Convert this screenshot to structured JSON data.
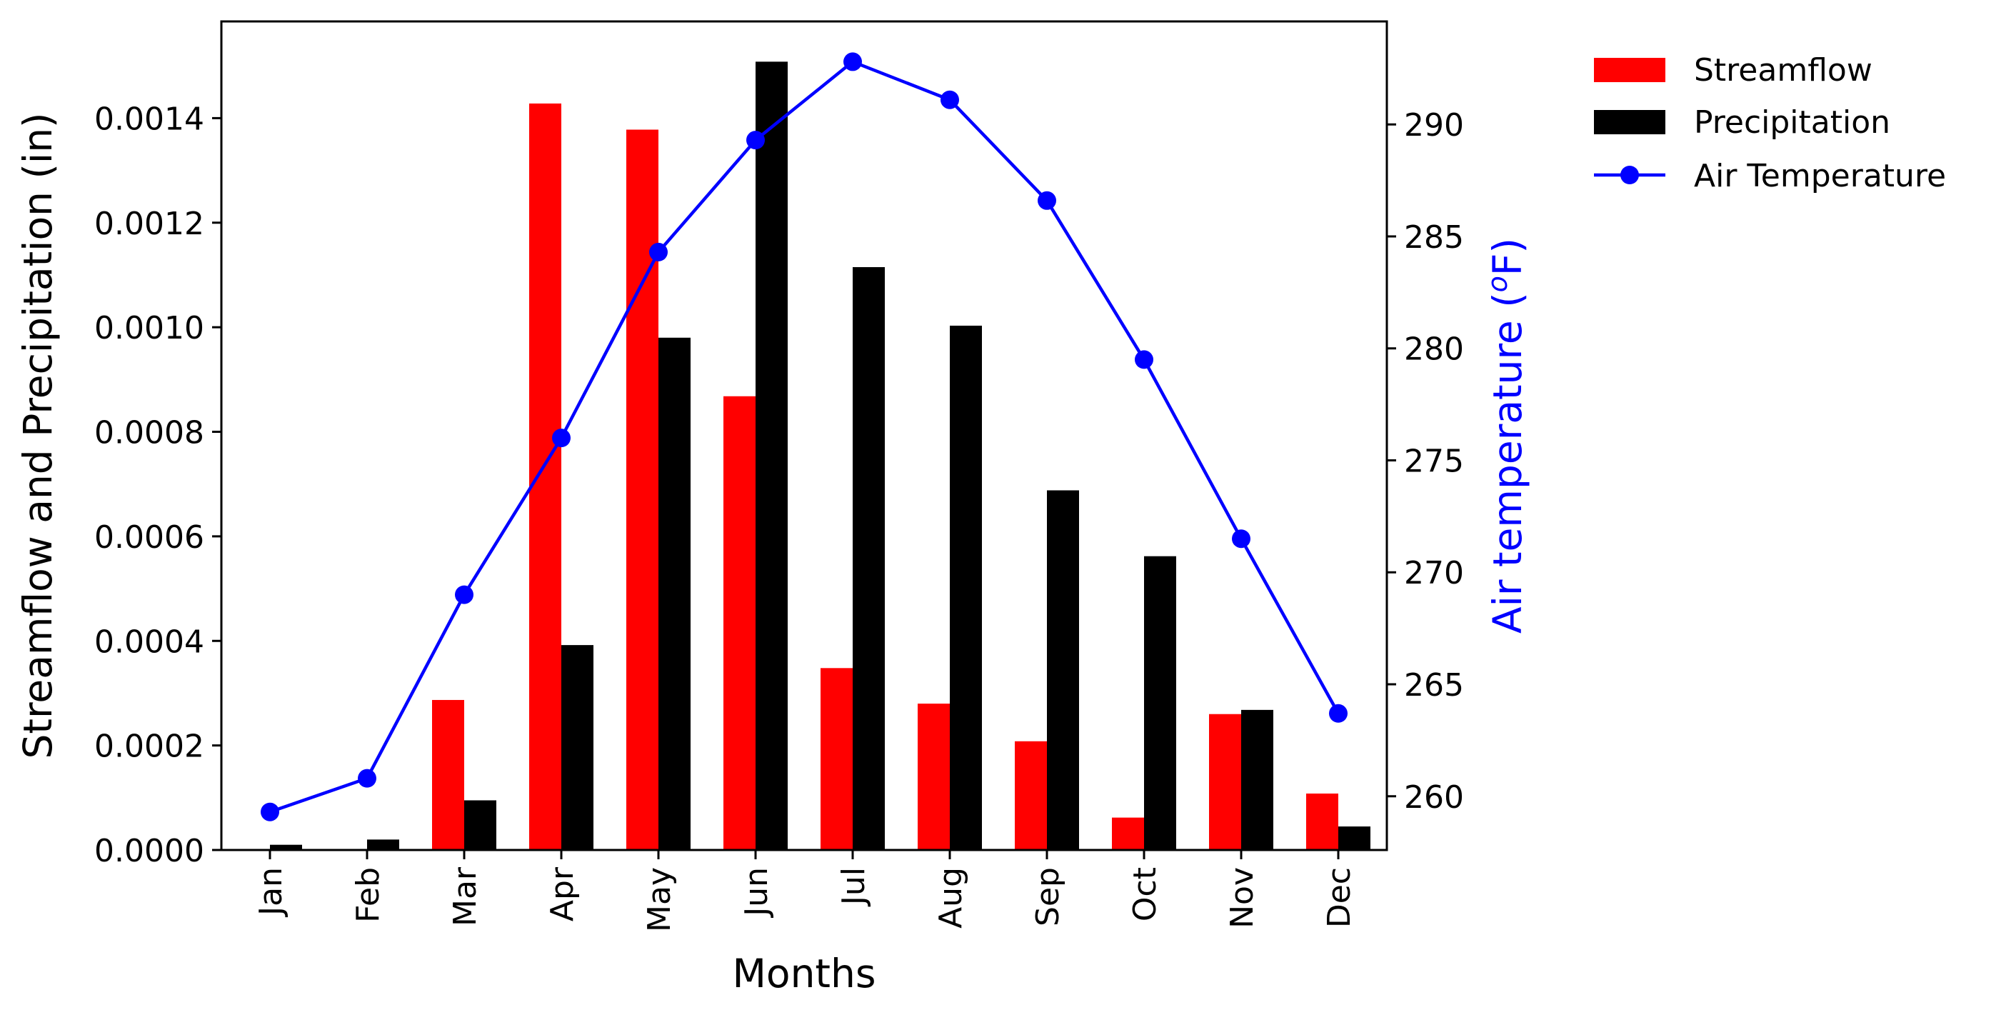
{
  "chart_data": {
    "type": "bar",
    "xlabel": "Months",
    "ylabel": "Streamflow and Precipitation (in)",
    "y2label": "Air temperature (",
    "y2label_unit_sup": "o",
    "y2label_unit_rest": "F)",
    "categories": [
      "Jan",
      "Feb",
      "Mar",
      "Apr",
      "May",
      "Jun",
      "Jul",
      "Aug",
      "Sep",
      "Oct",
      "Nov",
      "Dec"
    ],
    "ylim": [
      0,
      0.001585
    ],
    "y_ticks": [
      "0.0000",
      "0.0002",
      "0.0004",
      "0.0006",
      "0.0008",
      "0.0010",
      "0.0012",
      "0.0014"
    ],
    "y_tick_values": [
      0,
      0.0002,
      0.0004,
      0.0006,
      0.0008,
      0.001,
      0.0012,
      0.0014
    ],
    "y2lim": [
      257.6,
      294.6
    ],
    "y2_ticks": [
      "260",
      "265",
      "270",
      "275",
      "280",
      "285",
      "290"
    ],
    "y2_tick_values": [
      260,
      265,
      270,
      275,
      280,
      285,
      290
    ],
    "series": [
      {
        "name": "Streamflow",
        "kind": "bar",
        "axis": "left",
        "color": "#ff0000",
        "values": [
          0,
          0,
          0.000287,
          0.001428,
          0.001378,
          0.000868,
          0.000348,
          0.00028,
          0.000208,
          6.2e-05,
          0.00026,
          0.000108
        ]
      },
      {
        "name": "Precipitation",
        "kind": "bar",
        "axis": "left",
        "color": "#000000",
        "values": [
          1e-05,
          2e-05,
          9.5e-05,
          0.000392,
          0.00098,
          0.001508,
          0.001115,
          0.001003,
          0.000688,
          0.000562,
          0.000268,
          4.5e-05
        ]
      },
      {
        "name": "Air Temperature",
        "kind": "line",
        "axis": "right",
        "color": "#0000ff",
        "values": [
          259.3,
          260.8,
          269.0,
          276.0,
          284.3,
          289.3,
          292.8,
          291.1,
          286.6,
          279.5,
          271.5,
          263.7
        ]
      }
    ],
    "legend_position": "outside-top-right",
    "grid": false
  }
}
